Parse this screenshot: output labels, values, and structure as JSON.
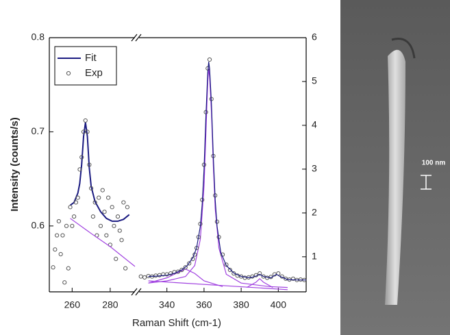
{
  "chart_data": [
    {
      "type": "line",
      "ylabel": "Intensity (counts/s)",
      "xlabel": "Raman Shift (cm-1)",
      "xlim": [
        248,
        293
      ],
      "xticks": [
        260,
        280
      ],
      "ylim": [
        0.53,
        0.8
      ],
      "yticks": [
        0.6,
        0.7,
        0.8
      ],
      "legend": "upper left",
      "series": [
        {
          "name": "Fit",
          "type": "line",
          "color": "#1a1a80",
          "x": [
            259,
            261,
            263,
            264,
            265,
            266,
            267,
            268,
            269,
            270,
            272,
            275,
            278,
            281,
            284,
            287,
            290
          ],
          "values": [
            0.622,
            0.625,
            0.635,
            0.645,
            0.665,
            0.695,
            0.71,
            0.695,
            0.662,
            0.642,
            0.626,
            0.615,
            0.608,
            0.605,
            0.605,
            0.607,
            0.612
          ]
        },
        {
          "name": "Exp",
          "type": "scatter",
          "color": "#555555",
          "x": [
            250,
            251,
            252,
            253,
            254,
            255,
            256,
            257,
            258,
            259,
            260,
            261,
            262,
            263,
            264,
            265,
            266,
            267,
            268,
            269,
            270,
            271,
            272,
            273,
            274,
            275,
            276,
            277,
            278,
            279,
            280,
            281,
            282,
            283,
            284,
            285,
            286,
            287,
            288,
            289
          ],
          "values": [
            0.556,
            0.575,
            0.59,
            0.605,
            0.57,
            0.59,
            0.54,
            0.6,
            0.555,
            0.62,
            0.6,
            0.61,
            0.625,
            0.63,
            0.66,
            0.673,
            0.7,
            0.712,
            0.7,
            0.665,
            0.64,
            0.61,
            0.625,
            0.59,
            0.63,
            0.6,
            0.638,
            0.615,
            0.59,
            0.63,
            0.58,
            0.62,
            0.6,
            0.565,
            0.61,
            0.595,
            0.585,
            0.625,
            0.555,
            0.62
          ]
        },
        {
          "type": "line",
          "color": "#a040e0",
          "x": [
            259,
            270,
            280,
            293
          ],
          "values": [
            0.608,
            0.592,
            0.578,
            0.557
          ]
        }
      ]
    },
    {
      "type": "line",
      "xlim": [
        325,
        415
      ],
      "xticks": [
        340,
        360,
        380,
        400
      ],
      "y2lim": [
        0.2,
        6
      ],
      "y2ticks": [
        1,
        2,
        3,
        4,
        5,
        6
      ],
      "series": [
        {
          "type": "line",
          "color": "#a040e0",
          "axis": "y2",
          "x": [
            330,
            405
          ],
          "values": [
            0.45,
            0.25
          ]
        },
        {
          "type": "line",
          "color": "#a040e0",
          "axis": "y2",
          "x": [
            330,
            340,
            345,
            350,
            355,
            360,
            370
          ],
          "values": [
            0.4,
            0.52,
            0.62,
            0.72,
            0.62,
            0.45,
            0.32
          ]
        },
        {
          "type": "line",
          "color": "#a040e0",
          "axis": "y2",
          "x": [
            383,
            388,
            390,
            392,
            397
          ],
          "values": [
            0.3,
            0.42,
            0.5,
            0.42,
            0.3
          ]
        },
        {
          "type": "line",
          "color": "#a040e0",
          "axis": "y2",
          "x": [
            330,
            340,
            350,
            355,
            358,
            360,
            361,
            362,
            362.5,
            363,
            364,
            365,
            366,
            368,
            372,
            380,
            395,
            405
          ],
          "values": [
            0.4,
            0.45,
            0.55,
            0.8,
            1.4,
            2.6,
            3.8,
            5.0,
            5.3,
            5.1,
            4.3,
            3.1,
            2.1,
            1.2,
            0.6,
            0.4,
            0.32,
            0.3
          ]
        },
        {
          "type": "scatter",
          "color": "#555555",
          "axis": "y2",
          "x": [
            326,
            328,
            330,
            332,
            334,
            336,
            338,
            340,
            342,
            344,
            346,
            348,
            350,
            352,
            354,
            355,
            356,
            357,
            358,
            359,
            360,
            361,
            362,
            363,
            364,
            365,
            366,
            367,
            368,
            370,
            372,
            374,
            376,
            378,
            380,
            382,
            384,
            386,
            388,
            390,
            392,
            394,
            396,
            398,
            400,
            402,
            404,
            406,
            408,
            410,
            412,
            414
          ],
          "values": [
            0.55,
            0.53,
            0.56,
            0.55,
            0.57,
            0.58,
            0.6,
            0.6,
            0.62,
            0.65,
            0.66,
            0.7,
            0.76,
            0.85,
            0.95,
            1.05,
            1.2,
            1.45,
            1.75,
            2.3,
            3.1,
            4.3,
            5.3,
            5.5,
            4.6,
            3.3,
            2.4,
            1.8,
            1.45,
            1.05,
            0.82,
            0.7,
            0.62,
            0.57,
            0.55,
            0.52,
            0.53,
            0.55,
            0.58,
            0.62,
            0.55,
            0.52,
            0.54,
            0.6,
            0.62,
            0.55,
            0.5,
            0.48,
            0.5,
            0.47,
            0.48,
            0.47
          ]
        },
        {
          "type": "line",
          "color": "#1a1a80",
          "axis": "y2",
          "x": [
            330,
            335,
            340,
            344,
            348,
            351,
            354,
            356,
            358,
            359,
            360,
            361,
            362,
            362.5,
            363,
            364,
            365,
            366,
            367,
            369,
            372,
            376,
            380,
            385,
            388,
            390,
            392,
            396,
            399,
            401,
            405,
            410,
            415
          ],
          "values": [
            0.55,
            0.56,
            0.58,
            0.62,
            0.7,
            0.8,
            0.98,
            1.2,
            1.7,
            2.2,
            3.0,
            4.2,
            5.2,
            5.45,
            5.3,
            4.5,
            3.3,
            2.3,
            1.7,
            1.1,
            0.8,
            0.63,
            0.55,
            0.52,
            0.56,
            0.6,
            0.55,
            0.52,
            0.6,
            0.55,
            0.48,
            0.47,
            0.47
          ]
        }
      ]
    }
  ],
  "image": {
    "scale_label": "100 nm"
  }
}
